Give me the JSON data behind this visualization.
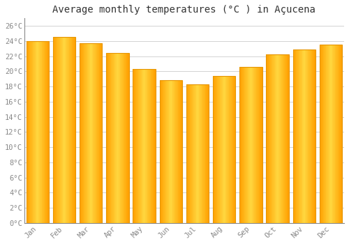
{
  "title": "Average monthly temperatures (°C ) in Açucena",
  "months": [
    "Jan",
    "Feb",
    "Mar",
    "Apr",
    "May",
    "Jun",
    "Jul",
    "Aug",
    "Sep",
    "Oct",
    "Nov",
    "Dec"
  ],
  "values": [
    24.0,
    24.5,
    23.7,
    22.4,
    20.3,
    18.8,
    18.3,
    19.4,
    20.6,
    22.2,
    22.9,
    23.5
  ],
  "bar_color_center": "#FFD740",
  "bar_color_edge": "#FFA000",
  "bar_edge_color": "#E69500",
  "ylim": [
    0,
    27
  ],
  "yticks": [
    0,
    2,
    4,
    6,
    8,
    10,
    12,
    14,
    16,
    18,
    20,
    22,
    24,
    26
  ],
  "ytick_labels": [
    "0°C",
    "2°C",
    "4°C",
    "6°C",
    "8°C",
    "10°C",
    "12°C",
    "14°C",
    "16°C",
    "18°C",
    "20°C",
    "22°C",
    "24°C",
    "26°C"
  ],
  "background_color": "#FFFFFF",
  "grid_color": "#CCCCCC",
  "title_fontsize": 10,
  "tick_fontsize": 7.5,
  "tick_color": "#888888",
  "bar_width": 0.85,
  "n_gradient_strips": 40
}
